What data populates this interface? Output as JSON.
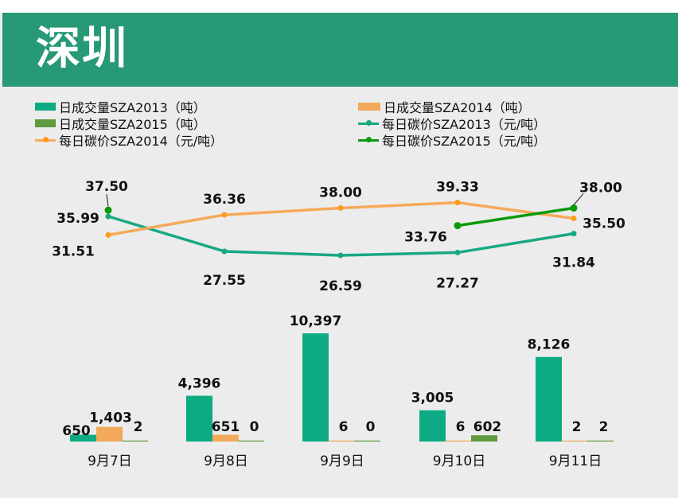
{
  "header": {
    "title": "深圳"
  },
  "legend": [
    {
      "label": "日成交量SZA2013（吨）",
      "color": "#0dab83",
      "kind": "bar"
    },
    {
      "label": "日成交量SZA2014（吨）",
      "color": "#f2a95a",
      "kind": "bar"
    },
    {
      "label": "日成交量SZA2015（吨）",
      "color": "#5f9a3c",
      "kind": "bar"
    },
    {
      "label": "每日碳价SZA2013（元/吨）",
      "color": "#17a882",
      "kind": "line"
    },
    {
      "label": "每日碳价SZA2014（元/吨）",
      "color": "#f5a95a",
      "kind": "line"
    },
    {
      "label": "每日碳价SZA2015（元/吨）",
      "color": "#0a9a0a",
      "kind": "line"
    }
  ],
  "chart_data": {
    "type": "bar+line",
    "categories": [
      "9月7日",
      "9月8日",
      "9月9日",
      "9月10日",
      "9月11日"
    ],
    "bar_series": [
      {
        "name": "日成交量SZA2013（吨）",
        "values": [
          650,
          4396,
          10397,
          3005,
          8126
        ],
        "labels": [
          "650",
          "4,396",
          "10,397",
          "3,005",
          "8,126"
        ],
        "color": "#0dab83"
      },
      {
        "name": "日成交量SZA2014（吨）",
        "values": [
          1403,
          651,
          6,
          6,
          2
        ],
        "labels": [
          "1,403",
          "651",
          "6",
          "6",
          "2"
        ],
        "color": "#f2a95a"
      },
      {
        "name": "日成交量SZA2015（吨）",
        "values": [
          2,
          0,
          0,
          602,
          2
        ],
        "labels": [
          "2",
          "0",
          "0",
          "602",
          "2"
        ],
        "color": "#5f9a3c"
      }
    ],
    "line_series": [
      {
        "name": "每日碳价SZA2013（元/吨）",
        "values": [
          35.99,
          27.55,
          26.59,
          27.27,
          31.84
        ],
        "labels": [
          "35.99",
          "27.55",
          "26.59",
          "27.27",
          "31.84"
        ],
        "color": "#17a882"
      },
      {
        "name": "每日碳价SZA2014（元/吨）",
        "values": [
          31.51,
          36.36,
          38.0,
          39.33,
          35.5
        ],
        "labels": [
          "31.51",
          "36.36",
          "38.00",
          "39.33",
          "35.50"
        ],
        "color": "#f5a95a"
      },
      {
        "name": "每日碳价SZA2015（元/吨）",
        "values": [
          37.5,
          null,
          null,
          33.76,
          38.0
        ],
        "labels": [
          "37.50",
          "",
          "",
          "33.76",
          "38.00"
        ],
        "color": "#0a9a0a"
      }
    ],
    "legend_position": "top",
    "grid": false
  }
}
